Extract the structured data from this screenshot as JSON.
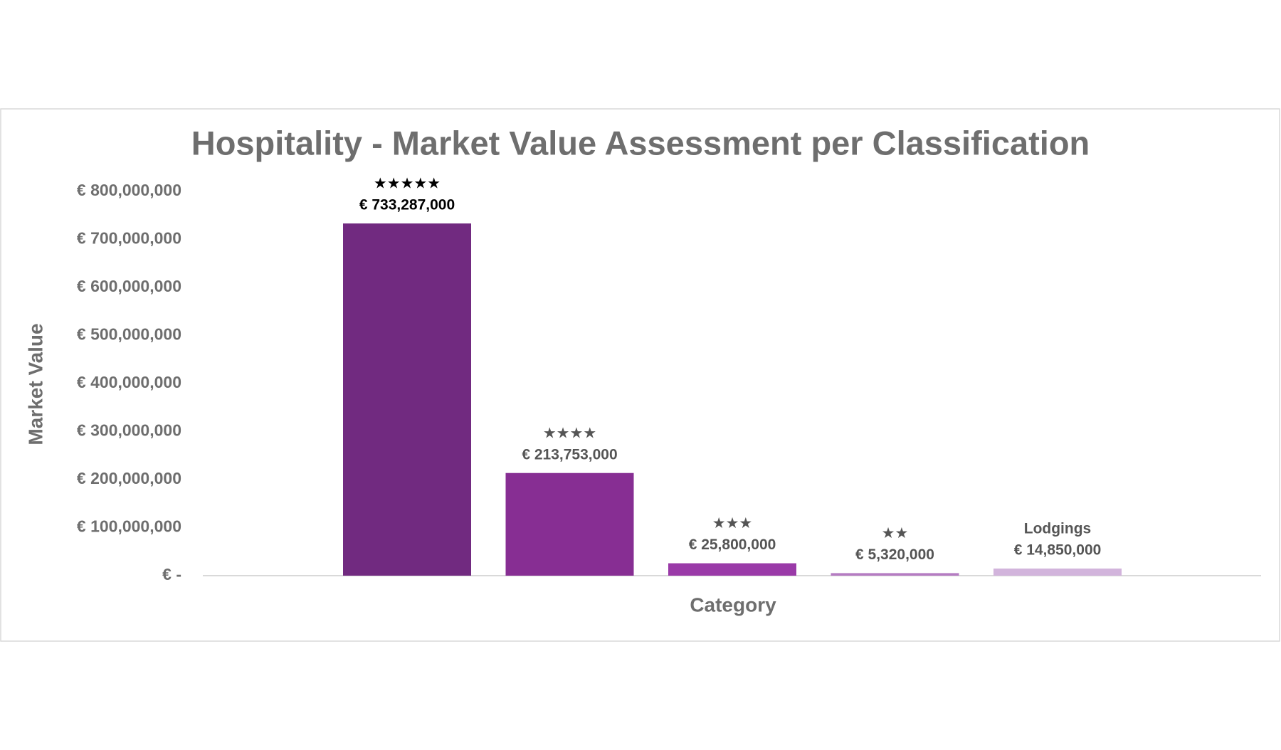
{
  "chart_data": {
    "type": "bar",
    "title": "Hospitality - Market Value Assessment per Classification",
    "x_label": "Category",
    "y_label": "Market Value",
    "categories": [
      "★★★★★",
      "★★★★",
      "★★★",
      "★★",
      "Lodgings"
    ],
    "values": [
      733287000,
      213753000,
      25800000,
      5320000,
      14850000
    ],
    "value_labels": [
      "€ 733,287,000",
      "€ 213,753,000",
      "€ 25,800,000",
      "€ 5,320,000",
      "€ 14,850,000"
    ],
    "colors": [
      "#712a80",
      "#872e93",
      "#9a3aa8",
      "#b57cc2",
      "#d2b4dc"
    ],
    "ylim": [
      0,
      800000000
    ],
    "yticks": [
      {
        "value": 0,
        "label": "€ -"
      },
      {
        "value": 100000000,
        "label": "€ 100,000,000"
      },
      {
        "value": 200000000,
        "label": "€ 200,000,000"
      },
      {
        "value": 300000000,
        "label": "€ 300,000,000"
      },
      {
        "value": 400000000,
        "label": "€ 400,000,000"
      },
      {
        "value": 500000000,
        "label": "€ 500,000,000"
      },
      {
        "value": 600000000,
        "label": "€ 600,000,000"
      },
      {
        "value": 700000000,
        "label": "€ 700,000,000"
      },
      {
        "value": 800000000,
        "label": "€ 800,000,000"
      }
    ],
    "grid": false
  }
}
